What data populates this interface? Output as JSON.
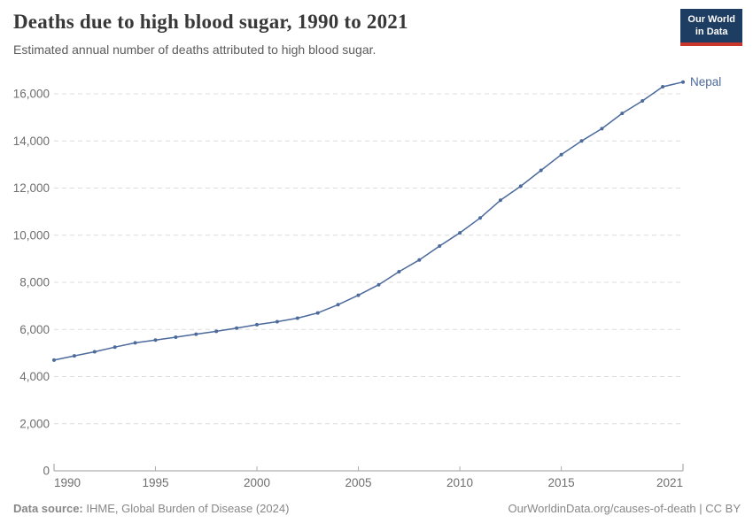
{
  "colors": {
    "accent": "#4c6a9c",
    "logo_bg": "#1d3d63",
    "logo_red": "#c9372c",
    "gridline": "#dcdcdc",
    "axis": "#999999",
    "tick_label": "#6e6e6e"
  },
  "logo": {
    "line1": "Our World",
    "line2": "in Data"
  },
  "chart_data": {
    "type": "line",
    "title": "Deaths due to high blood sugar, 1990 to 2021",
    "subtitle": "Estimated annual number of deaths attributed to high blood sugar.",
    "entity": "Nepal",
    "x": [
      1990,
      1991,
      1992,
      1993,
      1994,
      1995,
      1996,
      1997,
      1998,
      1999,
      2000,
      2001,
      2002,
      2003,
      2004,
      2005,
      2006,
      2007,
      2008,
      2009,
      2010,
      2011,
      2012,
      2013,
      2014,
      2015,
      2016,
      2017,
      2018,
      2019,
      2020,
      2021
    ],
    "series": [
      {
        "name": "Nepal",
        "color": "#4c6a9c",
        "values": [
          4700,
          4880,
          5050,
          5250,
          5430,
          5550,
          5670,
          5800,
          5920,
          6060,
          6200,
          6330,
          6480,
          6700,
          7050,
          7450,
          7900,
          8450,
          8950,
          9540,
          10100,
          10730,
          11480,
          12080,
          12750,
          13420,
          14000,
          14520,
          15170,
          15700,
          16300,
          16500
        ]
      }
    ],
    "xlim": [
      1990,
      2021
    ],
    "ylim": [
      0,
      16000
    ],
    "yticks": [
      0,
      2000,
      4000,
      6000,
      8000,
      10000,
      12000,
      14000,
      16000
    ],
    "xticks": [
      1990,
      1995,
      2000,
      2005,
      2010,
      2015,
      2021
    ],
    "grid": "horizontal-dashed",
    "legend": "line-end-label"
  },
  "footer": {
    "datasource_label": "Data source:",
    "datasource_value": " IHME, Global Burden of Disease (2024)",
    "rights": "OurWorldinData.org/causes-of-death | CC BY"
  }
}
